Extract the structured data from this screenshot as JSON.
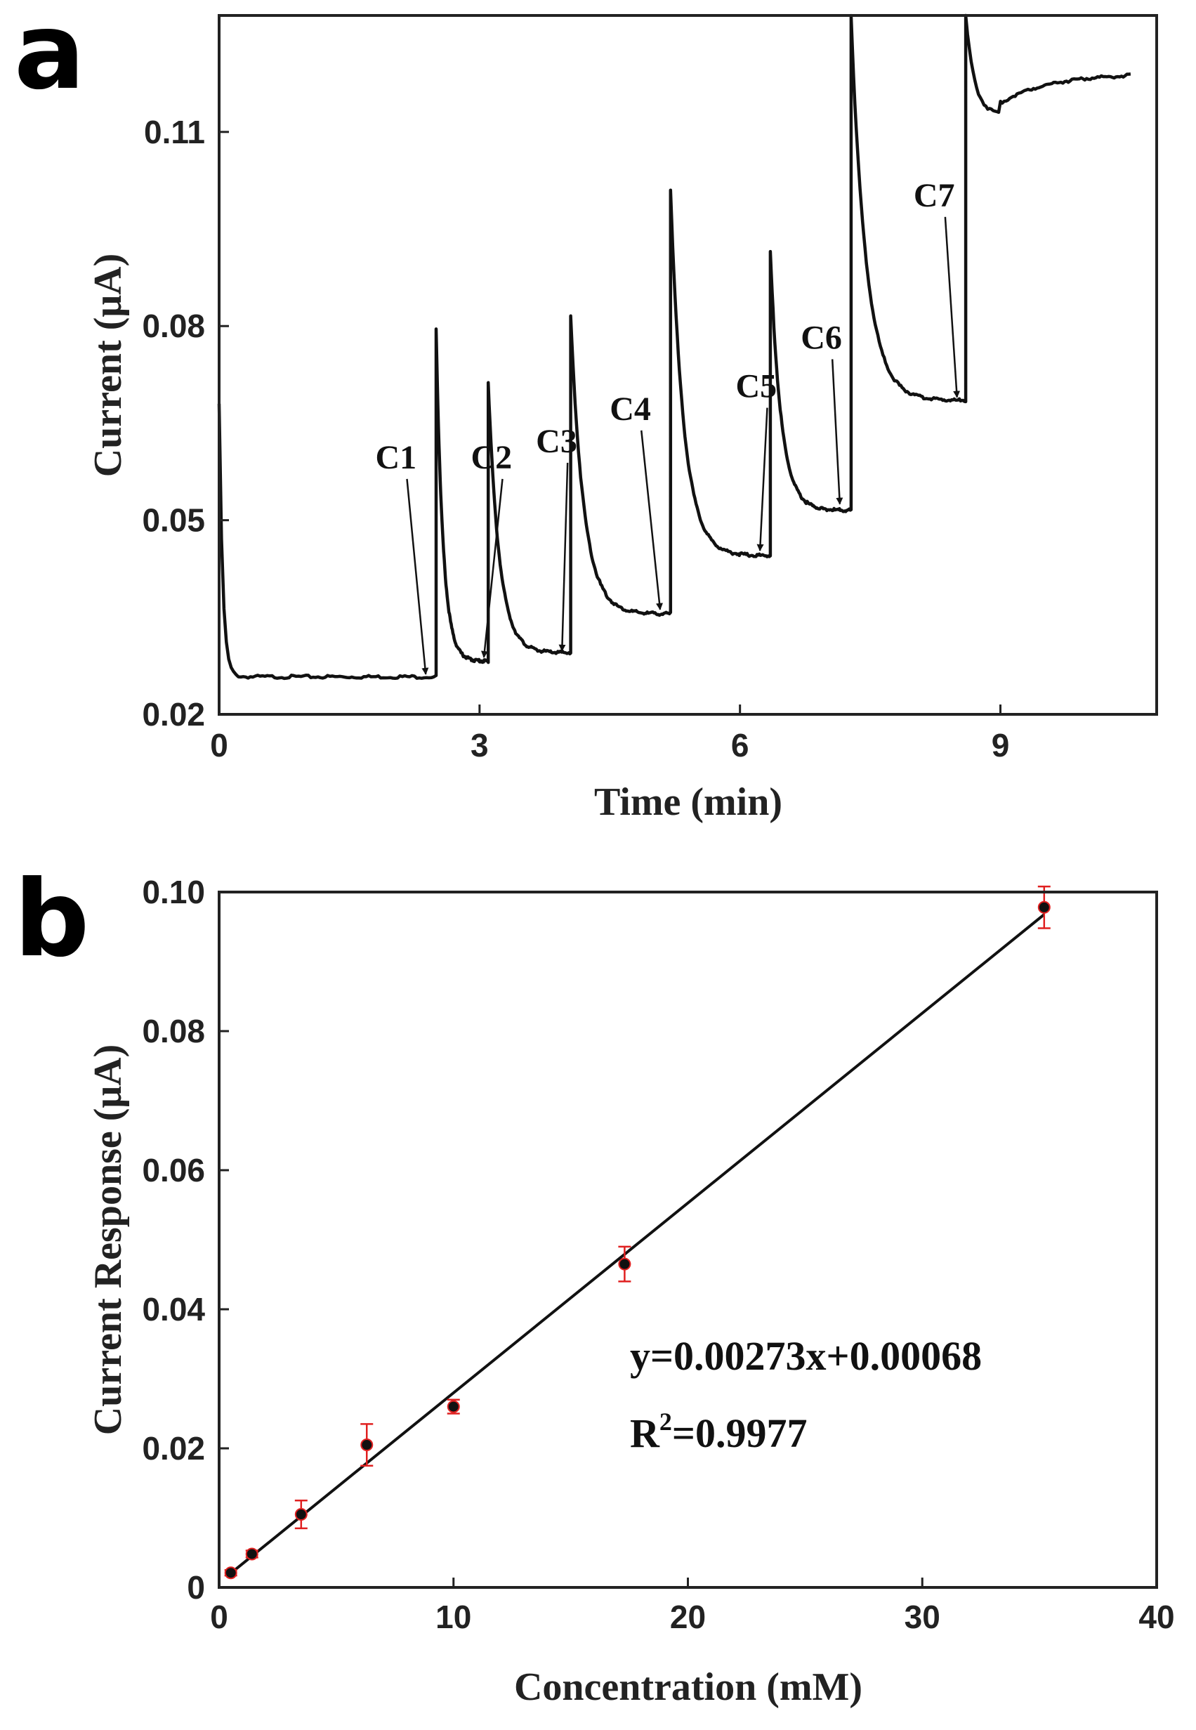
{
  "chart_data": [
    {
      "panel": "a",
      "type": "line",
      "xlabel": "Time (min)",
      "ylabel": "Current (μA)",
      "xlim": [
        0,
        10.8
      ],
      "ylim": [
        0.02,
        0.128
      ],
      "xticks": [
        0,
        3,
        6,
        9
      ],
      "yticks": [
        0.02,
        0.05,
        0.08,
        0.11
      ],
      "xtick_labels": [
        "0",
        "3",
        "6",
        "9"
      ],
      "ytick_labels": [
        "0.02",
        "0.05",
        "0.08",
        "0.11"
      ],
      "steps": [
        {
          "t0": 0.0,
          "t1": 2.5,
          "spike": 0.068,
          "base": 0.0258
        },
        {
          "t0": 2.5,
          "t1": 3.1,
          "spike": 0.0795,
          "base": 0.0282
        },
        {
          "t0": 3.1,
          "t1": 4.05,
          "spike": 0.0715,
          "base": 0.0295
        },
        {
          "t0": 4.05,
          "t1": 5.2,
          "spike": 0.0815,
          "base": 0.0355
        },
        {
          "t0": 5.2,
          "t1": 6.35,
          "spike": 0.1012,
          "base": 0.0445
        },
        {
          "t0": 6.35,
          "t1": 7.28,
          "spike": 0.0915,
          "base": 0.0515
        },
        {
          "t0": 7.28,
          "t1": 8.6,
          "spike": 0.128,
          "base": 0.0685
        },
        {
          "t0": 8.6,
          "t1": 10.5,
          "spike": 0.128,
          "base": 0.119,
          "dip": 0.1125,
          "dip_t": 9.0
        }
      ],
      "annotations": [
        {
          "label": "C1",
          "text_x": 1.8,
          "text_y": 0.058,
          "tip_x": 2.38,
          "tip_y": 0.0262
        },
        {
          "label": "C2",
          "text_x": 2.9,
          "text_y": 0.058,
          "tip_x": 3.05,
          "tip_y": 0.0288
        },
        {
          "label": "C3",
          "text_x": 3.65,
          "text_y": 0.0605,
          "tip_x": 3.95,
          "tip_y": 0.0298
        },
        {
          "label": "C4",
          "text_x": 4.5,
          "text_y": 0.0655,
          "tip_x": 5.08,
          "tip_y": 0.0362
        },
        {
          "label": "C5",
          "text_x": 5.95,
          "text_y": 0.069,
          "tip_x": 6.23,
          "tip_y": 0.0453
        },
        {
          "label": "C6",
          "text_x": 6.7,
          "text_y": 0.0765,
          "tip_x": 7.15,
          "tip_y": 0.0525
        },
        {
          "label": "C7",
          "text_x": 8.0,
          "text_y": 0.0985,
          "tip_x": 8.5,
          "tip_y": 0.069
        }
      ]
    },
    {
      "panel": "b",
      "type": "scatter",
      "xlabel": "Concentration (mM)",
      "ylabel": "Current Response (μA)",
      "xlim": [
        0,
        40
      ],
      "ylim": [
        0,
        0.1
      ],
      "xticks": [
        0,
        10,
        20,
        30,
        40
      ],
      "yticks": [
        0,
        0.02,
        0.04,
        0.06,
        0.08,
        0.1
      ],
      "xtick_labels": [
        "0",
        "10",
        "20",
        "30",
        "40"
      ],
      "ytick_labels": [
        "0",
        "0.02",
        "0.04",
        "0.06",
        "0.08",
        "0.10"
      ],
      "points": [
        {
          "x": 0.5,
          "y": 0.0021,
          "err": 0.0004
        },
        {
          "x": 1.4,
          "y": 0.0048,
          "err": 0.0005
        },
        {
          "x": 3.5,
          "y": 0.0105,
          "err": 0.002
        },
        {
          "x": 6.3,
          "y": 0.0205,
          "err": 0.003
        },
        {
          "x": 10.0,
          "y": 0.026,
          "err": 0.001
        },
        {
          "x": 17.3,
          "y": 0.0465,
          "err": 0.0025
        },
        {
          "x": 35.2,
          "y": 0.0978,
          "err": 0.003
        }
      ],
      "fit": {
        "slope": 0.00273,
        "intercept": 0.00068,
        "x_start": 0.3,
        "x_end": 35.2
      },
      "equation_text": "y=0.00273x+0.00068",
      "r2_prefix": "R",
      "r2_sup": "2",
      "r2_value": "=0.9977"
    }
  ],
  "panel_labels": {
    "a": "a",
    "b": "b"
  }
}
